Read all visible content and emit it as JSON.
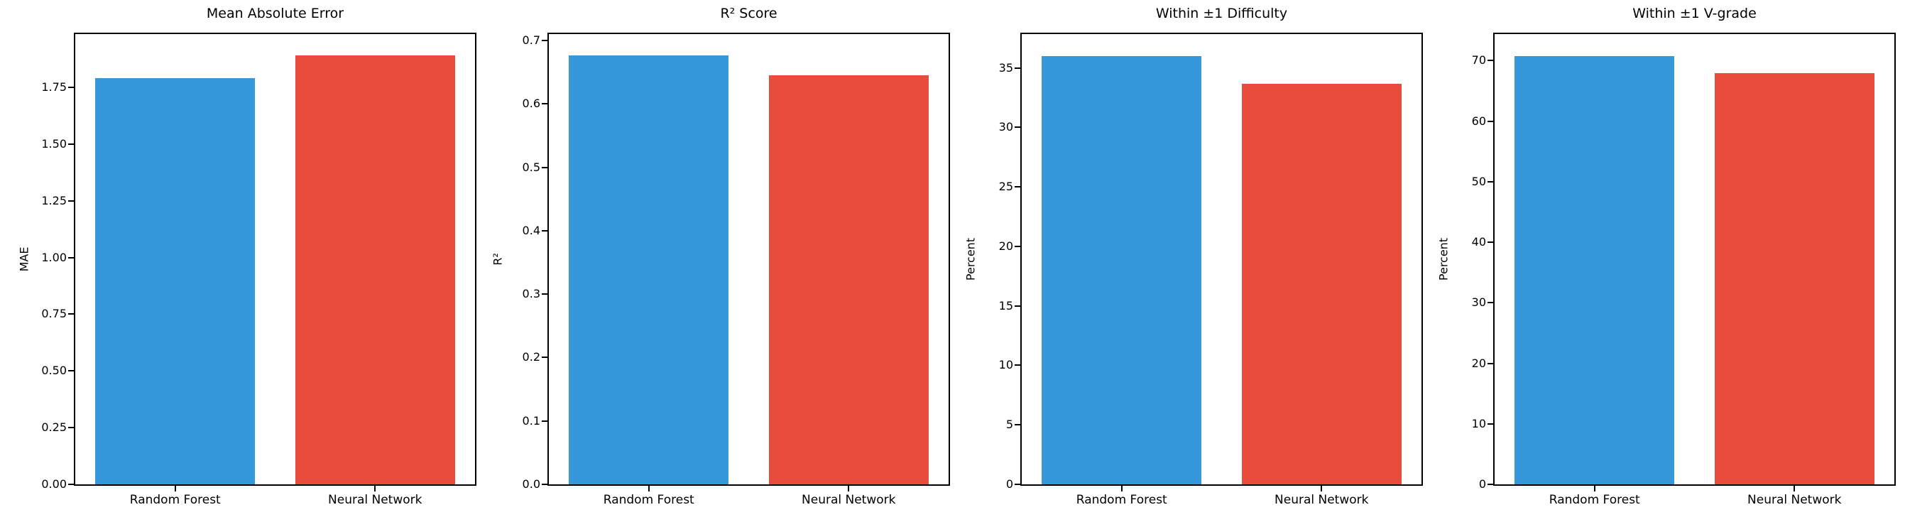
{
  "figure": {
    "background": "#ffffff",
    "axis_color": "#000000",
    "series_names": [
      "Random Forest",
      "Neural Network"
    ],
    "series_colors": [
      "#3498db",
      "#e74c3c"
    ]
  },
  "chart_data": [
    {
      "type": "bar",
      "title": "Mean Absolute Error",
      "ylabel": "MAE",
      "xlabel": "",
      "categories": [
        "Random Forest",
        "Neural Network"
      ],
      "values": [
        1.79,
        1.89
      ],
      "bar_colors": [
        "#3498db",
        "#e74c3c"
      ],
      "yticks": [
        0.0,
        0.25,
        0.5,
        0.75,
        1.0,
        1.25,
        1.5,
        1.75
      ],
      "ytick_labels": [
        "0.00",
        "0.25",
        "0.50",
        "0.75",
        "1.00",
        "1.25",
        "1.50",
        "1.75"
      ],
      "ylim": [
        0,
        1.985
      ],
      "grid": false,
      "legend": "none",
      "bar_width_fraction": 0.8
    },
    {
      "type": "bar",
      "title": "R² Score",
      "ylabel": "R²",
      "xlabel": "",
      "categories": [
        "Random Forest",
        "Neural Network"
      ],
      "values": [
        0.676,
        0.645
      ],
      "bar_colors": [
        "#3498db",
        "#e74c3c"
      ],
      "yticks": [
        0.0,
        0.1,
        0.2,
        0.3,
        0.4,
        0.5,
        0.6,
        0.7
      ],
      "ytick_labels": [
        "0.0",
        "0.1",
        "0.2",
        "0.3",
        "0.4",
        "0.5",
        "0.6",
        "0.7"
      ],
      "ylim": [
        0,
        0.71
      ],
      "grid": false,
      "legend": "none",
      "bar_width_fraction": 0.8
    },
    {
      "type": "bar",
      "title": "Within ±1 Difficulty",
      "ylabel": "Percent",
      "xlabel": "",
      "categories": [
        "Random Forest",
        "Neural Network"
      ],
      "values": [
        36.0,
        33.7
      ],
      "bar_colors": [
        "#3498db",
        "#e74c3c"
      ],
      "yticks": [
        0,
        5,
        10,
        15,
        20,
        25,
        30,
        35
      ],
      "ytick_labels": [
        "0",
        "5",
        "10",
        "15",
        "20",
        "25",
        "30",
        "35"
      ],
      "ylim": [
        0,
        37.85
      ],
      "grid": false,
      "legend": "none",
      "bar_width_fraction": 0.8
    },
    {
      "type": "bar",
      "title": "Within ±1 V-grade",
      "ylabel": "Percent",
      "xlabel": "",
      "categories": [
        "Random Forest",
        "Neural Network"
      ],
      "values": [
        70.8,
        67.9
      ],
      "bar_colors": [
        "#3498db",
        "#e74c3c"
      ],
      "yticks": [
        0,
        10,
        20,
        30,
        40,
        50,
        60,
        70
      ],
      "ytick_labels": [
        "0",
        "10",
        "20",
        "30",
        "40",
        "50",
        "60",
        "70"
      ],
      "ylim": [
        0,
        74.4
      ],
      "grid": false,
      "legend": "none",
      "bar_width_fraction": 0.8
    }
  ]
}
